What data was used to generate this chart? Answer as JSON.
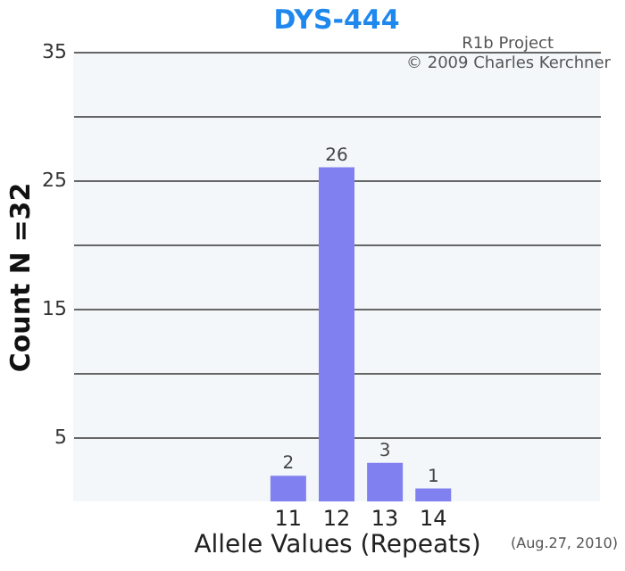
{
  "chart_data": {
    "type": "bar",
    "title": "DYS-444",
    "xlabel": "Allele Values (Repeats)",
    "ylabel": "Count N =32",
    "categories": [
      null,
      null,
      null,
      null,
      "11",
      "12",
      "13",
      "14",
      null,
      null,
      null
    ],
    "values": [
      null,
      null,
      null,
      null,
      2,
      26,
      3,
      1,
      null,
      null,
      null
    ],
    "color": "#8080f0",
    "data_labels": true,
    "grid": "y",
    "ylim": [
      0,
      35
    ],
    "yticks": [
      5,
      {
        "value": 10,
        "label": null
      },
      15,
      {
        "value": 20,
        "label": null
      },
      25,
      {
        "value": 30,
        "label": null
      },
      35
    ],
    "annotations": [
      "R1b Project",
      "© 2009 Charles Kerchner",
      "(Aug.27, 2010)"
    ]
  }
}
